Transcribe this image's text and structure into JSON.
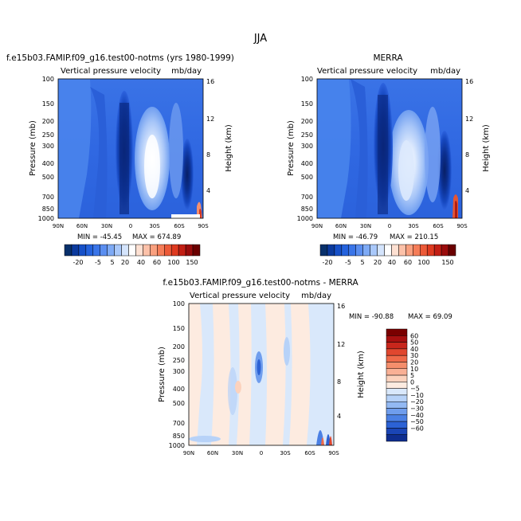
{
  "page_title": "JJA",
  "chart_data": [
    {
      "type": "heatmap",
      "title": "f.e15b03.FAMIP.f09_g16.test00-notms (yrs 1980-1999)",
      "subtitle_left": "Vertical pressure velocity",
      "subtitle_right": "mb/day",
      "ylabel": "Pressure (mb)",
      "y2label": "Height (km)",
      "x_ticks": [
        "90N",
        "60N",
        "30N",
        "0",
        "30S",
        "60S",
        "90S"
      ],
      "y_ticks": [
        100,
        150,
        200,
        250,
        300,
        400,
        500,
        700,
        850,
        1000
      ],
      "y2_ticks": [
        16,
        12,
        8,
        4
      ],
      "min_text": "MIN = -45.45",
      "max_text": "MAX = 674.89",
      "min": -45.45,
      "max": 674.89
    },
    {
      "type": "heatmap",
      "title": "MERRA",
      "subtitle_left": "Vertical pressure velocity",
      "subtitle_right": "mb/day",
      "ylabel": "Pressure (mb)",
      "y2label": "Height (km)",
      "x_ticks": [
        "90N",
        "60N",
        "30N",
        "0",
        "30S",
        "60S",
        "90S"
      ],
      "y_ticks": [
        100,
        150,
        200,
        250,
        300,
        400,
        500,
        700,
        850,
        1000
      ],
      "y2_ticks": [
        16,
        12,
        8,
        4
      ],
      "min_text": "MIN = -46.79",
      "max_text": "MAX = 210.15",
      "min": -46.79,
      "max": 210.15
    },
    {
      "type": "heatmap",
      "title": "f.e15b03.FAMIP.f09_g16.test00-notms - MERRA",
      "subtitle_left": "Vertical pressure velocity",
      "subtitle_right": "mb/day",
      "ylabel": "Pressure (mb)",
      "y2label": "Height (km)",
      "x_ticks": [
        "90N",
        "60N",
        "30N",
        "0",
        "30S",
        "60S",
        "90S"
      ],
      "y_ticks": [
        100,
        150,
        200,
        250,
        300,
        400,
        500,
        700,
        850,
        1000
      ],
      "y2_ticks": [
        16,
        12,
        8,
        4
      ],
      "min_text": "MIN = -90.88",
      "max_text": "MAX =   69.09",
      "min": -90.88,
      "max": 69.09
    }
  ],
  "colorbar_top": {
    "labels": [
      "-20",
      "-5",
      "5",
      "20",
      "40",
      "60",
      "100",
      "150"
    ],
    "colors": [
      "#08306b",
      "#0b3a9e",
      "#1650c8",
      "#2462dd",
      "#3a75e8",
      "#5a8ef0",
      "#7eaaf5",
      "#a9c8fa",
      "#d4e4fc",
      "#ffffff",
      "#fde0d2",
      "#fcc1a9",
      "#f9a07f",
      "#f57d58",
      "#ec5a38",
      "#de3a20",
      "#c21f14",
      "#9a0c0c",
      "#6b0000"
    ]
  },
  "colorbar_diff": {
    "labels": [
      "60",
      "50",
      "40",
      "30",
      "20",
      "10",
      "5",
      "0",
      "−5",
      "−10",
      "−20",
      "−30",
      "−40",
      "−50",
      "−60"
    ],
    "colors": [
      "#7a0000",
      "#a81010",
      "#c8261c",
      "#e0472f",
      "#ef6a4a",
      "#f58e6c",
      "#f9b095",
      "#fcd2bd",
      "#fdebe0",
      "#d9e8fb",
      "#b7d2f8",
      "#93b9f3",
      "#6f9ded",
      "#4b80e4",
      "#2c62d5",
      "#1a45b5",
      "#0e2d8f"
    ]
  }
}
